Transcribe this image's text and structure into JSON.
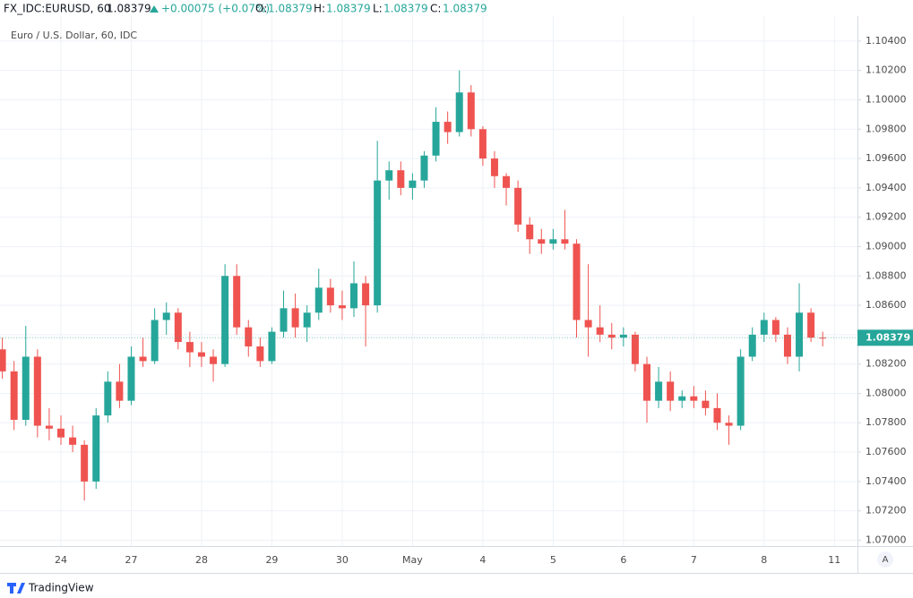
{
  "header": {
    "symbol": "FX_IDC:EURUSD, 60",
    "price": "1.08379",
    "change": "+0.00075 (+0.07%)",
    "ohlc": [
      {
        "label": "O:",
        "value": "1.08379"
      },
      {
        "label": "H:",
        "value": "1.08379"
      },
      {
        "label": "L:",
        "value": "1.08379"
      },
      {
        "label": "C:",
        "value": "1.08379"
      }
    ]
  },
  "chart_data": {
    "type": "candlestick",
    "title": "Euro / U.S. Dollar, 60, IDC",
    "categories": [
      null,
      null,
      null,
      null,
      null,
      "24",
      null,
      null,
      null,
      null,
      null,
      "27",
      null,
      null,
      null,
      null,
      null,
      "28",
      null,
      null,
      null,
      null,
      null,
      "29",
      null,
      null,
      null,
      null,
      null,
      "30",
      null,
      null,
      null,
      null,
      null,
      "May",
      null,
      null,
      null,
      null,
      null,
      "4",
      null,
      null,
      null,
      null,
      null,
      "5",
      null,
      null,
      null,
      null,
      null,
      "6",
      null,
      null,
      null,
      null,
      null,
      "7",
      null,
      null,
      null,
      null,
      null,
      "8",
      null,
      null,
      null,
      null,
      null,
      "11"
    ],
    "open": [
      1.083,
      1.0815,
      1.0782,
      1.0825,
      1.0778,
      1.0776,
      1.077,
      1.0765,
      1.074,
      1.0785,
      1.0808,
      1.0795,
      1.0825,
      1.0822,
      1.085,
      1.0855,
      1.0835,
      1.0828,
      1.0825,
      1.082,
      1.088,
      1.0845,
      1.0832,
      1.0822,
      1.0842,
      1.0858,
      1.0845,
      1.0855,
      1.0872,
      1.086,
      1.0858,
      1.0875,
      1.086,
      1.0945,
      1.0952,
      1.094,
      1.0945,
      1.0962,
      1.0985,
      1.0978,
      1.1005,
      1.098,
      1.096,
      1.0948,
      1.094,
      1.0915,
      1.0905,
      1.0902,
      1.0905,
      1.0902,
      1.085,
      1.0845,
      1.084,
      1.0838,
      1.084,
      1.082,
      1.0795,
      1.0808,
      1.0795,
      1.0798,
      1.0795,
      1.079,
      1.078,
      1.0778,
      1.0825,
      1.084,
      1.085,
      1.084,
      1.0825,
      1.0855,
      1.0838,
      null
    ],
    "high": [
      1.0838,
      1.0822,
      1.0846,
      1.083,
      1.079,
      1.0785,
      1.0778,
      1.0768,
      1.079,
      1.0815,
      1.082,
      1.0832,
      1.0838,
      1.0858,
      1.0862,
      1.0858,
      1.0842,
      1.0835,
      1.083,
      1.0888,
      1.0888,
      1.085,
      1.0838,
      1.0845,
      1.087,
      1.0868,
      1.086,
      1.0885,
      1.0878,
      1.087,
      1.089,
      1.088,
      1.0972,
      1.0958,
      1.0958,
      1.095,
      1.0965,
      1.0995,
      1.0992,
      1.102,
      1.101,
      1.0982,
      1.0965,
      1.095,
      1.0945,
      1.092,
      1.0912,
      1.0912,
      1.0925,
      1.0905,
      1.0888,
      1.086,
      1.0848,
      1.0845,
      1.0842,
      1.0825,
      1.0818,
      1.0815,
      1.0802,
      1.0805,
      1.0802,
      1.08,
      1.0785,
      1.083,
      1.0845,
      1.0855,
      1.0852,
      1.0845,
      1.0875,
      1.0858,
      1.0842,
      null
    ],
    "low": [
      1.081,
      1.0775,
      1.0778,
      1.077,
      1.0768,
      1.0765,
      1.076,
      1.0727,
      1.0735,
      1.078,
      1.079,
      1.0792,
      1.0818,
      1.082,
      1.084,
      1.083,
      1.0818,
      1.0818,
      1.0808,
      1.0818,
      1.084,
      1.0825,
      1.0818,
      1.082,
      1.0838,
      1.0838,
      1.0835,
      1.085,
      1.0855,
      1.085,
      1.0852,
      1.0832,
      1.0855,
      1.0932,
      1.0935,
      1.0932,
      1.094,
      1.0958,
      1.097,
      1.0975,
      1.0975,
      1.0955,
      1.094,
      1.0928,
      1.091,
      1.0895,
      1.0895,
      1.0898,
      1.0898,
      1.0838,
      1.0825,
      1.0835,
      1.083,
      1.0832,
      1.0815,
      1.078,
      1.079,
      1.0788,
      1.079,
      1.079,
      1.0785,
      1.0775,
      1.0765,
      1.0775,
      1.0822,
      1.0835,
      1.0835,
      1.082,
      1.0815,
      1.0835,
      1.0832,
      null
    ],
    "close": [
      1.0815,
      1.0782,
      1.0825,
      1.0778,
      1.0776,
      1.077,
      1.0765,
      1.074,
      1.0785,
      1.0808,
      1.0795,
      1.0825,
      1.0822,
      1.085,
      1.0855,
      1.0835,
      1.0828,
      1.0825,
      1.082,
      1.088,
      1.0845,
      1.0832,
      1.0822,
      1.0842,
      1.0858,
      1.0845,
      1.0855,
      1.0872,
      1.086,
      1.0858,
      1.0875,
      1.086,
      1.0945,
      1.0952,
      1.094,
      1.0945,
      1.0962,
      1.0985,
      1.0978,
      1.1005,
      1.098,
      1.096,
      1.0948,
      1.094,
      1.0915,
      1.0905,
      1.0902,
      1.0905,
      1.0902,
      1.085,
      1.0845,
      1.084,
      1.0838,
      1.084,
      1.082,
      1.0795,
      1.0808,
      1.0795,
      1.0798,
      1.0795,
      1.079,
      1.078,
      1.0778,
      1.0825,
      1.084,
      1.085,
      1.084,
      1.0825,
      1.0855,
      1.0838,
      1.08379,
      null
    ],
    "up_color": "#26a69a",
    "down_color": "#ef5350",
    "ylim": [
      1.0696,
      1.1057
    ],
    "yticks": [
      {
        "value": 1.07,
        "label": "1.07000"
      },
      {
        "value": 1.072,
        "label": "1.07200"
      },
      {
        "value": 1.074,
        "label": "1.07400"
      },
      {
        "value": 1.076,
        "label": "1.07600"
      },
      {
        "value": 1.078,
        "label": "1.07800"
      },
      {
        "value": 1.08,
        "label": "1.08000"
      },
      {
        "value": 1.082,
        "label": "1.08200"
      },
      {
        "value": 1.084,
        "label": "1.08400"
      },
      {
        "value": 1.086,
        "label": "1.08600"
      },
      {
        "value": 1.088,
        "label": "1.08800"
      },
      {
        "value": 1.09,
        "label": "1.09000"
      },
      {
        "value": 1.092,
        "label": "1.09200"
      },
      {
        "value": 1.094,
        "label": "1.09400"
      },
      {
        "value": 1.096,
        "label": "1.09600"
      },
      {
        "value": 1.098,
        "label": "1.09800"
      },
      {
        "value": 1.1,
        "label": "1.10000"
      },
      {
        "value": 1.102,
        "label": "1.10200"
      },
      {
        "value": 1.104,
        "label": "1.10400"
      }
    ],
    "last_price": {
      "value": 1.08379,
      "label": "1.08379"
    },
    "grid": true
  },
  "footer": {
    "brand": "TradingView",
    "scale_button": "A"
  }
}
